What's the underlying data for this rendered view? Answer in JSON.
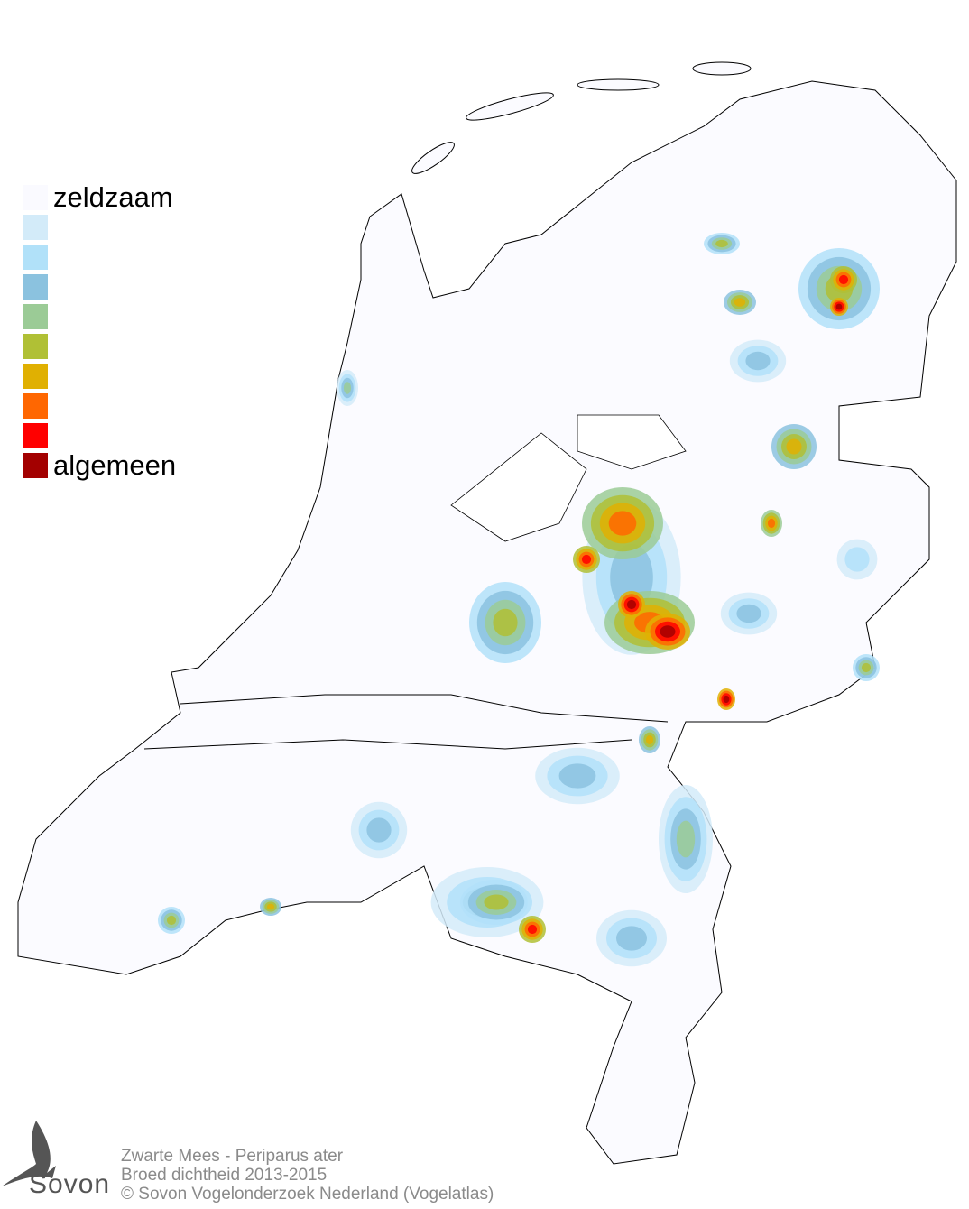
{
  "legend": {
    "top_label": "zeldzaam",
    "bottom_label": "algemeen",
    "colors": [
      "#fafaff",
      "#d3ebf9",
      "#b1e1f9",
      "#8bc2df",
      "#9bcb96",
      "#b0c035",
      "#e0b002",
      "#ff6701",
      "#ff0000",
      "#a30000"
    ]
  },
  "footer": {
    "line1": "Zwarte Mees - Periparus ater",
    "line2": "Broed dichtheid 2013-2015",
    "line3": "© Sovon Vogelonderzoek Nederland (Vogelatlas)"
  },
  "logo": {
    "text": "Sovon",
    "icon": "swallow-icon"
  }
}
